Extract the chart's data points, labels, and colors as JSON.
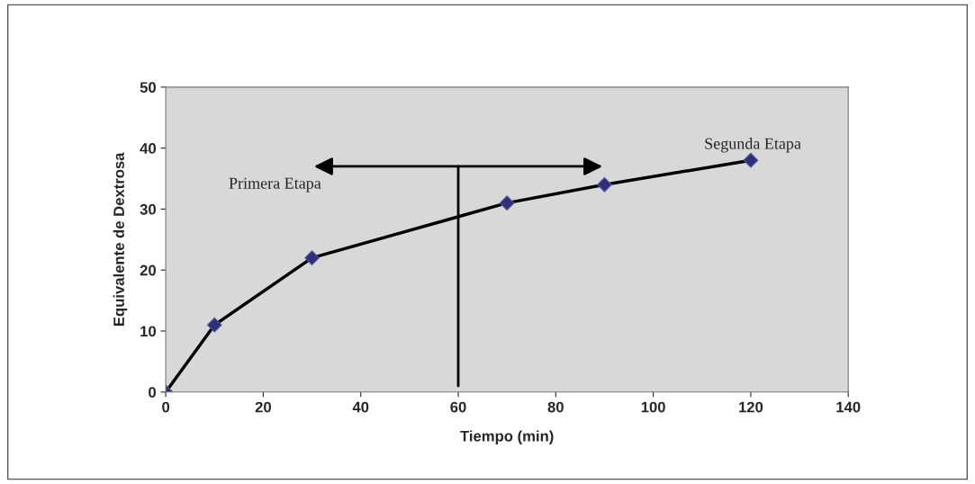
{
  "chart_data": {
    "type": "line",
    "xlabel": "Tiempo (min)",
    "ylabel": "Equivalente de Dextrosa",
    "x": [
      0,
      10,
      30,
      70,
      90,
      120
    ],
    "series": [
      {
        "color": "#000000",
        "values": [
          0,
          11,
          22,
          31,
          34,
          38
        ]
      }
    ],
    "marker": "diamond",
    "line_style": "solid",
    "xlim": [
      0,
      140
    ],
    "xticks": [
      0,
      20,
      40,
      60,
      80,
      100,
      120,
      140
    ],
    "ylim": [
      0,
      50
    ],
    "yticks": [
      0,
      10,
      20,
      30,
      40,
      50
    ],
    "ref_lines": [
      {
        "axis": "x",
        "value": 60,
        "color": "#000000"
      }
    ],
    "annotations": [
      "Primera Etapa",
      "Segunda Etapa"
    ],
    "grid": false,
    "legend": false
  }
}
